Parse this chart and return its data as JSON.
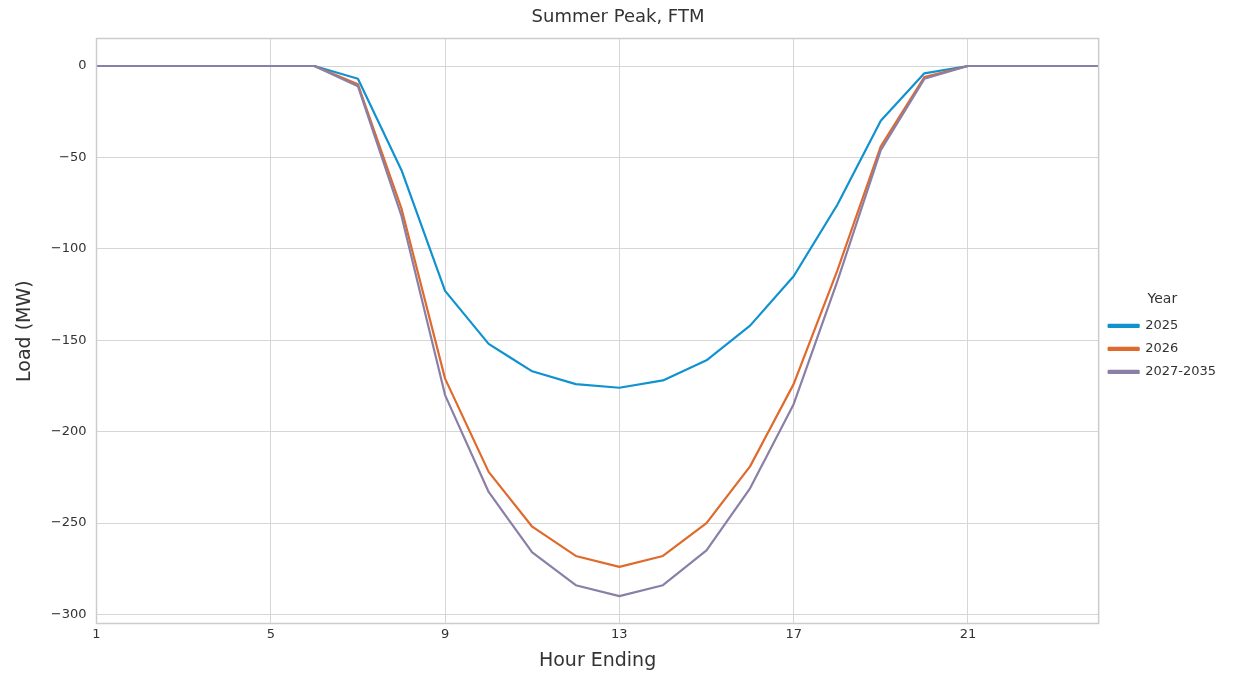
{
  "chart_data": {
    "type": "line",
    "title": "Summer Peak, FTM",
    "xlabel": "Hour Ending",
    "ylabel": "Load (MW)",
    "legend_title": "Year",
    "x": [
      1,
      2,
      3,
      4,
      5,
      6,
      7,
      8,
      9,
      10,
      11,
      12,
      13,
      14,
      15,
      16,
      17,
      18,
      19,
      20,
      21,
      22,
      23,
      24
    ],
    "series": [
      {
        "name": "2025",
        "color": "#1192d0",
        "values": [
          null,
          null,
          null,
          null,
          null,
          0,
          -7,
          -57,
          -123,
          -152,
          -167,
          -174,
          -176,
          -172,
          -161,
          -142,
          -115,
          -76,
          -30,
          -4,
          0,
          null,
          null,
          null
        ]
      },
      {
        "name": "2026",
        "color": "#e0692c",
        "values": [
          null,
          null,
          null,
          null,
          null,
          0,
          -10,
          -78,
          -171,
          -222,
          -252,
          -268,
          -274,
          -268,
          -250,
          -219,
          -174,
          -112,
          -44,
          -6,
          0,
          null,
          null,
          null
        ]
      },
      {
        "name": "2027-2035",
        "color": "#8a7fa6",
        "values": [
          0,
          0,
          0,
          0,
          0,
          0,
          -11,
          -82,
          -180,
          -233,
          -266,
          -284,
          -290,
          -284,
          -265,
          -231,
          -185,
          -118,
          -46,
          -7,
          0,
          0,
          0,
          0
        ]
      }
    ],
    "xlim": [
      1,
      24
    ],
    "xticks": [
      1,
      5,
      9,
      13,
      17,
      21
    ],
    "ylim": [
      -305,
      15
    ],
    "yticks": [
      0,
      -50,
      -100,
      -150,
      -200,
      -250,
      -300
    ],
    "grid": true,
    "legend": "right",
    "marker": "none",
    "line_style": "solid"
  }
}
